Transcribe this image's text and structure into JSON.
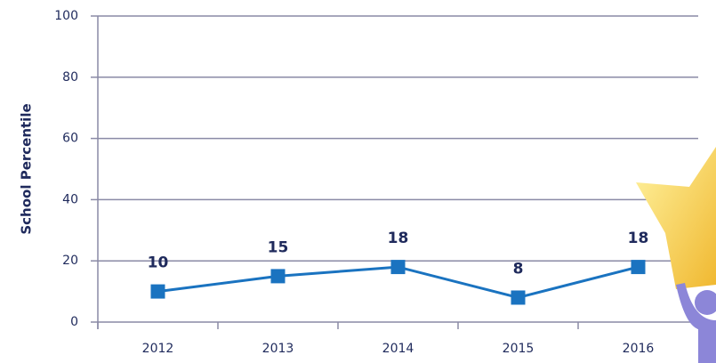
{
  "chart_data": {
    "type": "line",
    "y_label": "School Percentile",
    "categories": [
      "2012",
      "2013",
      "2014",
      "2015",
      "2016"
    ],
    "values": [
      10,
      15,
      18,
      8,
      18
    ],
    "color": "#1a73c0",
    "ylim": [
      0,
      100
    ],
    "yticks": [
      0,
      20,
      40,
      60,
      80,
      100
    ],
    "grid": true
  }
}
